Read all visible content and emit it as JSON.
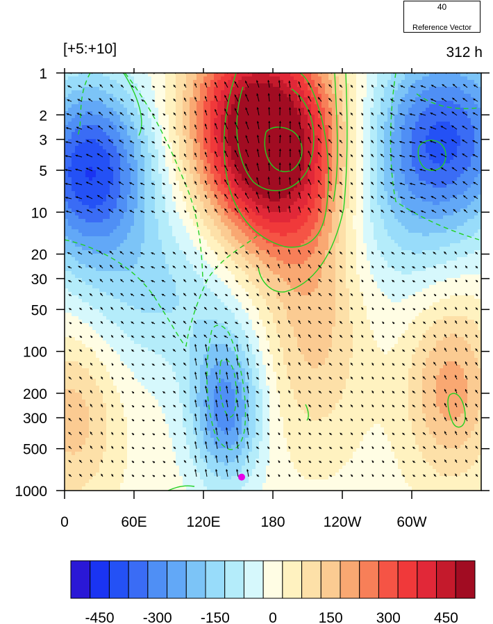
{
  "header": {
    "left_label": "[+5:+10]",
    "right_label": "312 h"
  },
  "reference_vector": {
    "magnitude": "40",
    "label": "Reference Vector"
  },
  "chart_data": {
    "type": "heatmap",
    "title": "",
    "xlabel": "",
    "ylabel": "",
    "x_ticks": [
      "0",
      "60E",
      "120E",
      "180",
      "120W",
      "60W"
    ],
    "x_range_deg_east": [
      0,
      360
    ],
    "y_ticks": [
      "1",
      "2",
      "3",
      "5",
      "10",
      "20",
      "30",
      "50",
      "100",
      "200",
      "300",
      "500",
      "1000"
    ],
    "y_range": [
      1000,
      1
    ],
    "y_scale": "log",
    "marker": {
      "lon_deg_east": 153,
      "level": 800,
      "color": "#e600e6"
    },
    "colorbar": {
      "levels": [
        -525,
        -475,
        -425,
        -375,
        -325,
        -275,
        -225,
        -175,
        -125,
        -75,
        -25,
        25,
        75,
        125,
        175,
        225,
        275,
        325,
        375,
        425,
        475,
        525
      ],
      "tick_labels": [
        "-450",
        "-300",
        "-150",
        "0",
        "150",
        "300",
        "450"
      ],
      "tick_values": [
        -450,
        -300,
        -150,
        0,
        150,
        300,
        450
      ],
      "colors": [
        "#2a18d6",
        "#1a34f2",
        "#2451f5",
        "#3a6cf5",
        "#4f8ff5",
        "#62a8f7",
        "#7cc4f7",
        "#98dcfa",
        "#b4ecfa",
        "#d6f8fc",
        "#fffde4",
        "#fff2c0",
        "#fde0a8",
        "#fbcb92",
        "#f9a872",
        "#f77f58",
        "#f55445",
        "#f0393a",
        "#e12838",
        "#c41a2c",
        "#a10c22"
      ]
    },
    "contour_color": "#22d022",
    "grid": false
  }
}
